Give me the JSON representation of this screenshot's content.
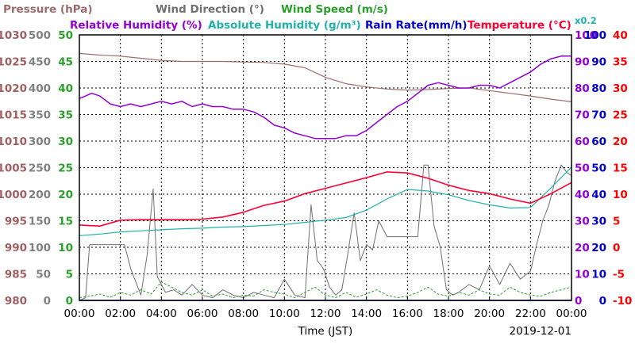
{
  "chart_data": {
    "type": "line",
    "date_label": "2019-12-01",
    "xlabel": "Time (JST)",
    "x_ticks": [
      "00:00",
      "02:00",
      "04:00",
      "06:00",
      "08:00",
      "10:00",
      "12:00",
      "14:00",
      "16:00",
      "18:00",
      "20:00",
      "22:00",
      "00:00"
    ],
    "legend": {
      "pressure": "Pressure (hPa)",
      "wind_dir": "Wind Direction (°)",
      "wind_speed": "Wind Speed (m/s)",
      "rh": "Relative Humidity (%)",
      "ah": "Absolute Humidity (g/m³)",
      "rain": "Rain Rate(mm/h)",
      "temp": "Temperature (°C)",
      "ah_scale": "x0.2"
    },
    "axes": {
      "pressure": {
        "label": "Pressure (hPa)",
        "range": [
          980,
          1030
        ],
        "ticks": [
          1030,
          1025,
          1020,
          1015,
          1010,
          1005,
          1000,
          995,
          990,
          985,
          980
        ],
        "color": "#a06060"
      },
      "wind_dir": {
        "label": "Wind Direction (°)",
        "range": [
          0,
          500
        ],
        "ticks": [
          500,
          450,
          400,
          350,
          300,
          250,
          200,
          150,
          100,
          50,
          0
        ],
        "color": "#808080"
      },
      "wind_speed": {
        "label": "Wind Speed (m/s)",
        "range": [
          0,
          50
        ],
        "ticks": [
          50,
          45,
          40,
          35,
          30,
          25,
          20,
          15,
          10,
          5,
          0
        ],
        "color": "#2aa02a"
      },
      "rh": {
        "label": "Relative Humidity (%)",
        "range": [
          0,
          100
        ],
        "ticks": [
          100,
          90,
          80,
          70,
          60,
          50,
          40,
          30,
          20,
          10,
          0
        ],
        "color": "#9400d3"
      },
      "rain": {
        "label": "Rain Rate(mm/h)",
        "range": [
          0,
          100
        ],
        "ticks": [
          100,
          90,
          80,
          70,
          60,
          50,
          40,
          30,
          20,
          10,
          0
        ],
        "color": "#0000cd"
      },
      "temp": {
        "label": "Temperature (°C)",
        "range": [
          -10,
          40
        ],
        "ticks": [
          40,
          35,
          30,
          25,
          20,
          15,
          10,
          5,
          0,
          -5,
          -10
        ],
        "color": "#ff0000"
      }
    },
    "colors": {
      "pressure": "#9c6b6b",
      "wind_dir": "#707070",
      "wind_speed": "#2aa02a",
      "rh": "#9400d3",
      "ah": "#20b2aa",
      "rain": "#0000cd",
      "temp": "#ff0033"
    },
    "series": {
      "pressure": {
        "name": "Pressure (hPa)",
        "axis": "pressure",
        "x": [
          0,
          1,
          2,
          3,
          4,
          5,
          6,
          7,
          8,
          9,
          10,
          11,
          12,
          13,
          14,
          15,
          16,
          17,
          18,
          19,
          20,
          21,
          22,
          23,
          24
        ],
        "y": [
          1026.5,
          1026.2,
          1026.0,
          1025.6,
          1025.2,
          1025.0,
          1025.0,
          1025.0,
          1024.9,
          1024.8,
          1024.5,
          1023.8,
          1022.0,
          1020.8,
          1020.2,
          1019.8,
          1019.6,
          1019.7,
          1019.9,
          1020.0,
          1019.5,
          1019.0,
          1018.5,
          1017.9,
          1017.4
        ]
      },
      "rh": {
        "name": "Relative Humidity (%)",
        "axis": "rh",
        "x": [
          0,
          0.3,
          0.6,
          1,
          1.5,
          2,
          2.5,
          3,
          3.5,
          4,
          4.5,
          5,
          5.5,
          6,
          6.5,
          7,
          7.5,
          8,
          8.5,
          9,
          9.5,
          10,
          10.5,
          11,
          11.5,
          12,
          12.5,
          13,
          13.5,
          14,
          14.5,
          15,
          15.5,
          16,
          16.5,
          17,
          17.5,
          18,
          18.5,
          19,
          19.5,
          20,
          20.5,
          21,
          21.5,
          22,
          22.5,
          23,
          23.5,
          24
        ],
        "y": [
          76,
          77,
          78,
          77,
          74,
          73,
          74,
          73,
          74,
          75,
          74,
          75,
          73,
          74,
          73,
          73,
          72,
          72,
          71,
          69,
          66,
          65,
          63,
          62,
          61,
          61,
          61,
          62,
          62,
          64,
          67,
          70,
          73,
          75,
          78,
          81,
          82,
          81,
          80,
          80,
          81,
          81,
          80,
          82,
          84,
          86,
          89,
          91,
          92,
          92
        ]
      },
      "ah": {
        "name": "Absolute Humidity (g/m³)",
        "axis": "temp",
        "x": [
          0,
          1,
          2,
          3,
          4,
          5,
          6,
          7,
          8,
          9,
          10,
          11,
          12,
          13,
          14,
          15,
          16,
          17,
          18,
          19,
          20,
          21,
          22,
          23,
          24
        ],
        "y": [
          2.2,
          2.5,
          2.9,
          3.1,
          3.3,
          3.5,
          3.6,
          3.8,
          3.9,
          4.1,
          4.3,
          4.7,
          5.1,
          5.6,
          7.0,
          9.1,
          10.9,
          10.6,
          9.9,
          8.8,
          8.0,
          7.4,
          7.5,
          11.2,
          15.1
        ]
      },
      "temp": {
        "name": "Temperature (°C)",
        "axis": "temp",
        "x": [
          0,
          1,
          2,
          3,
          4,
          5,
          6,
          7,
          8,
          9,
          10,
          11,
          12,
          13,
          14,
          15,
          16,
          17,
          18,
          19,
          20,
          21,
          22,
          23,
          24
        ],
        "y": [
          4.2,
          4.0,
          5.1,
          5.2,
          5.2,
          5.2,
          5.3,
          5.7,
          6.6,
          7.9,
          8.7,
          10.1,
          11.1,
          12.1,
          13.1,
          14.2,
          14.0,
          13.0,
          11.7,
          10.7,
          10.1,
          9.1,
          8.3,
          10.1,
          12.2
        ]
      },
      "wind_dir": {
        "name": "Wind Direction (°)",
        "axis": "wind_dir",
        "x": [
          0,
          0.3,
          0.5,
          1.5,
          2.2,
          2.5,
          3.0,
          3.3,
          3.6,
          3.8,
          4.0,
          4.2,
          4.6,
          5.0,
          5.5,
          6.0,
          6.5,
          7.0,
          7.5,
          8.0,
          8.5,
          9.0,
          9.5,
          10.0,
          10.5,
          11.0,
          11.3,
          11.6,
          11.9,
          12.2,
          12.5,
          12.8,
          13.1,
          13.4,
          13.7,
          14.0,
          14.3,
          14.6,
          15.0,
          15.5,
          16.0,
          16.5,
          16.8,
          17.0,
          17.3,
          17.6,
          17.9,
          18.2,
          18.5,
          19.0,
          19.5,
          20.0,
          20.5,
          21.0,
          21.5,
          22.0,
          22.3,
          22.6,
          22.9,
          23.2,
          23.5,
          23.8,
          24.0
        ],
        "y": [
          0,
          5,
          105,
          105,
          105,
          60,
          10,
          85,
          210,
          45,
          30,
          15,
          20,
          10,
          30,
          10,
          5,
          20,
          10,
          5,
          15,
          10,
          5,
          40,
          10,
          5,
          180,
          75,
          60,
          25,
          10,
          20,
          90,
          165,
          75,
          105,
          95,
          150,
          120,
          120,
          120,
          120,
          255,
          255,
          140,
          100,
          20,
          10,
          15,
          30,
          20,
          65,
          30,
          70,
          40,
          55,
          105,
          150,
          180,
          225,
          255,
          240,
          235
        ]
      },
      "wind_speed": {
        "name": "Wind Speed (m/s)",
        "axis": "wind_speed",
        "x": [
          0,
          0.5,
          1,
          1.5,
          2,
          2.5,
          3,
          3.5,
          4,
          4.5,
          5,
          5.5,
          6,
          6.5,
          7,
          7.5,
          8,
          8.5,
          9,
          9.5,
          10,
          10.5,
          11,
          11.5,
          12,
          12.5,
          13,
          13.5,
          14,
          14.5,
          15,
          15.5,
          16,
          16.5,
          17,
          17.5,
          18,
          18.5,
          19,
          19.5,
          20,
          20.5,
          21,
          21.5,
          22,
          22.5,
          23,
          23.5,
          24
        ],
        "y": [
          0.5,
          0.8,
          1.2,
          0.6,
          1.5,
          1.0,
          2.0,
          1.2,
          3.5,
          2.5,
          1.5,
          1.0,
          2.0,
          0.8,
          1.2,
          0.5,
          1.0,
          0.8,
          2.0,
          1.5,
          1.2,
          0.5,
          1.5,
          2.5,
          1.0,
          0.5,
          1.5,
          0.6,
          1.2,
          2.0,
          1.0,
          0.5,
          0.8,
          1.5,
          2.5,
          1.2,
          0.8,
          1.5,
          1.0,
          2.0,
          1.2,
          1.0,
          2.5,
          1.5,
          1.0,
          0.8,
          1.5,
          2.0,
          2.5
        ]
      },
      "rain": {
        "name": "Rain Rate(mm/h)",
        "axis": "rain",
        "x": [
          0,
          24
        ],
        "y": [
          0,
          0
        ]
      }
    }
  }
}
